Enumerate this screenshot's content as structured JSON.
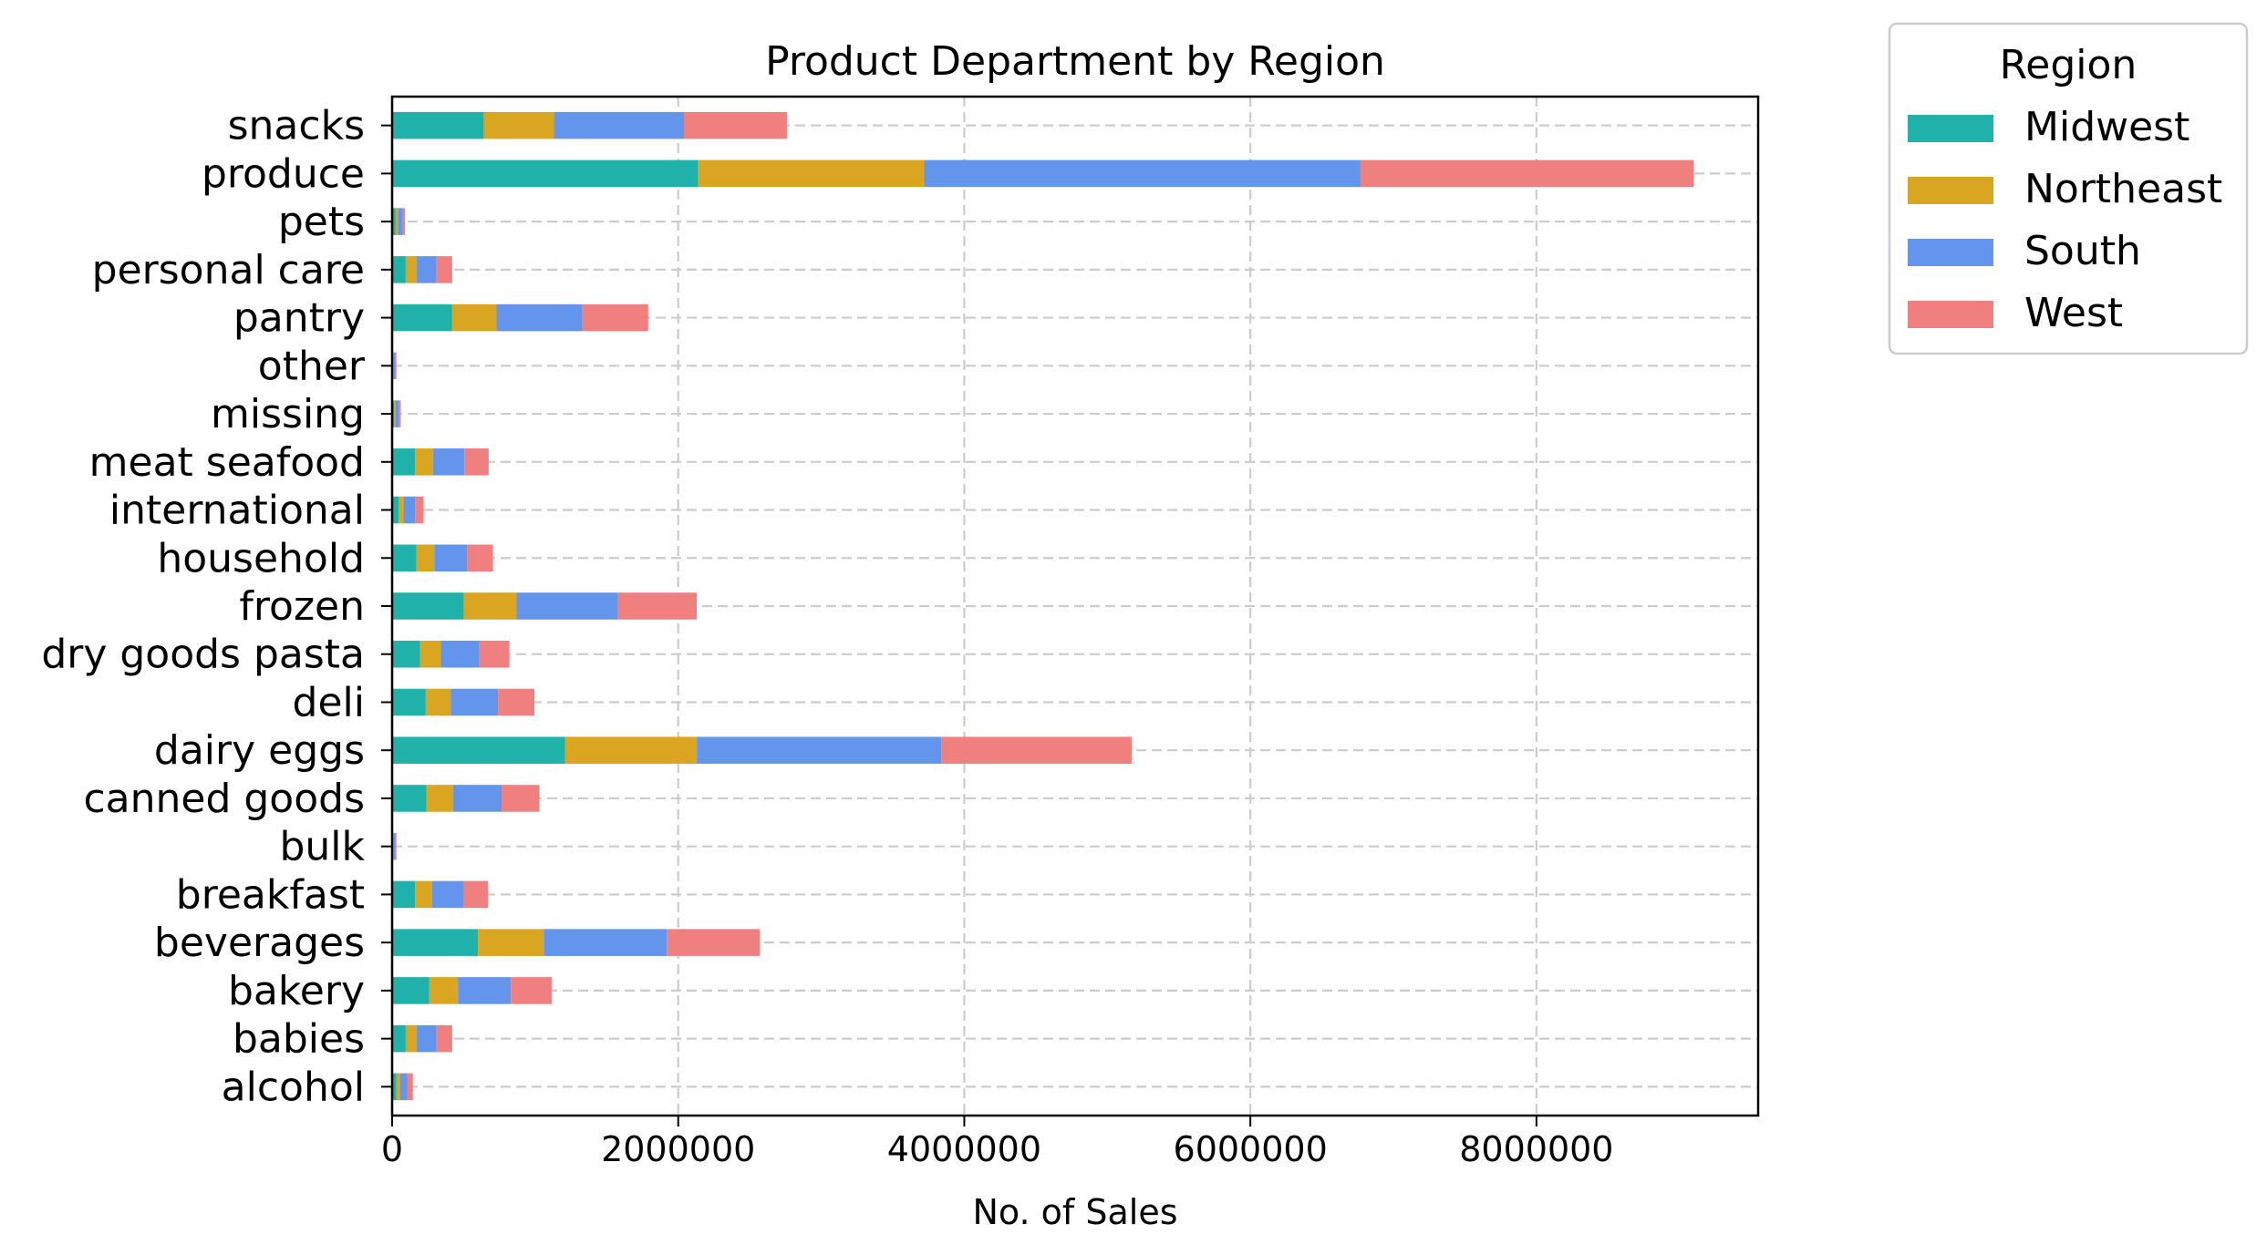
{
  "chart_data": {
    "type": "bar",
    "orientation": "horizontal",
    "stacked": true,
    "title": "Product Department by Region",
    "xlabel": "No. of Sales",
    "ylabel": "",
    "xlim": [
      0,
      9550000
    ],
    "xticks": [
      0,
      2000000,
      4000000,
      6000000,
      8000000
    ],
    "xtick_labels": [
      "0",
      "2000000",
      "4000000",
      "6000000",
      "8000000"
    ],
    "grid": true,
    "legend": {
      "title": "Region",
      "placement": "outside top-right"
    },
    "categories": [
      "snacks",
      "produce",
      "pets",
      "personal care",
      "pantry",
      "other",
      "missing",
      "meat seafood",
      "international",
      "household",
      "frozen",
      "dry goods pasta",
      "deli",
      "dairy eggs",
      "canned goods",
      "bulk",
      "breakfast",
      "beverages",
      "bakery",
      "babies",
      "alcohol"
    ],
    "series": [
      {
        "name": "Midwest",
        "color": "#20B2AA",
        "values": [
          640000,
          2140000,
          25000,
          95000,
          420000,
          8000,
          15000,
          160000,
          45000,
          170000,
          500000,
          195000,
          235000,
          1210000,
          240000,
          8000,
          160000,
          600000,
          260000,
          95000,
          30000
        ]
      },
      {
        "name": "Northeast",
        "color": "#DAA520",
        "values": [
          490000,
          1580000,
          15000,
          75000,
          310000,
          5000,
          10000,
          125000,
          35000,
          125000,
          370000,
          145000,
          175000,
          920000,
          185000,
          5000,
          120000,
          460000,
          200000,
          75000,
          25000
        ]
      },
      {
        "name": "South",
        "color": "#6495ED",
        "values": [
          910000,
          3050000,
          30000,
          140000,
          600000,
          10000,
          20000,
          220000,
          80000,
          230000,
          710000,
          270000,
          330000,
          1710000,
          340000,
          10000,
          220000,
          860000,
          370000,
          140000,
          50000
        ]
      },
      {
        "name": "West",
        "color": "#F08080",
        "values": [
          720000,
          2330000,
          20000,
          110000,
          460000,
          7000,
          15000,
          170000,
          60000,
          180000,
          550000,
          210000,
          255000,
          1330000,
          265000,
          7000,
          170000,
          650000,
          285000,
          110000,
          40000
        ]
      }
    ]
  }
}
